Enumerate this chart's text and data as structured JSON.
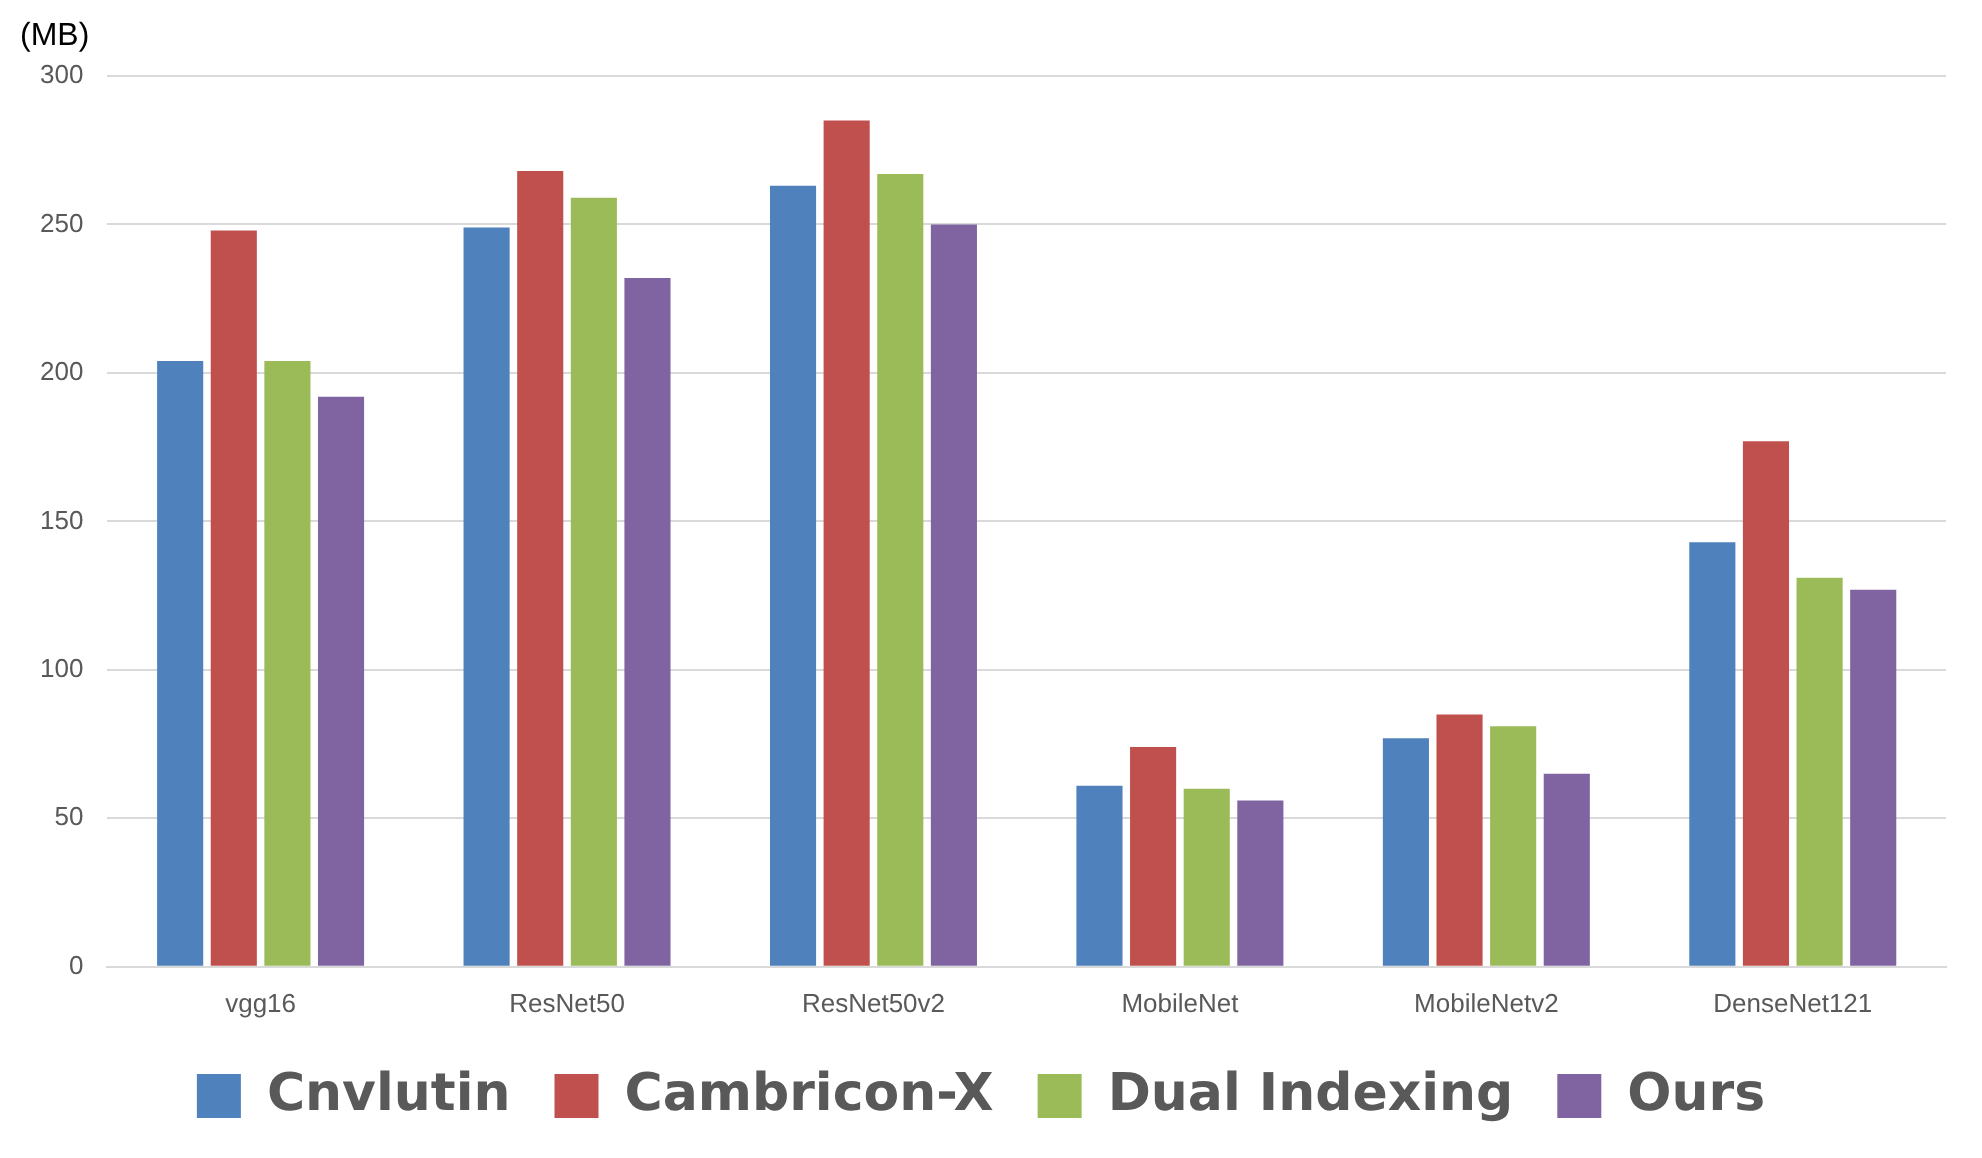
{
  "chart_data": {
    "type": "bar",
    "ylabel": "(MB)",
    "categories": [
      "vgg16",
      "ResNet50",
      "ResNet50v2",
      "MobileNet",
      "MobileNetv2",
      "DenseNet121"
    ],
    "series": [
      {
        "name": "Cnvlutin",
        "color": "#4f81bd",
        "values": [
          204,
          249,
          263,
          61,
          77,
          143
        ]
      },
      {
        "name": "Cambricon-X",
        "color": "#c0504d",
        "values": [
          248,
          268,
          285,
          74,
          85,
          177
        ]
      },
      {
        "name": "Dual Indexing",
        "color": "#9bbb59",
        "values": [
          204,
          259,
          267,
          60,
          81,
          131
        ]
      },
      {
        "name": "Ours",
        "color": "#8064a2",
        "values": [
          192,
          232,
          250,
          56,
          65,
          127
        ]
      }
    ],
    "ylim": [
      0,
      300
    ],
    "yticks": [
      0,
      50,
      100,
      150,
      200,
      250,
      300
    ],
    "grid": "y",
    "legend": "bottom"
  }
}
